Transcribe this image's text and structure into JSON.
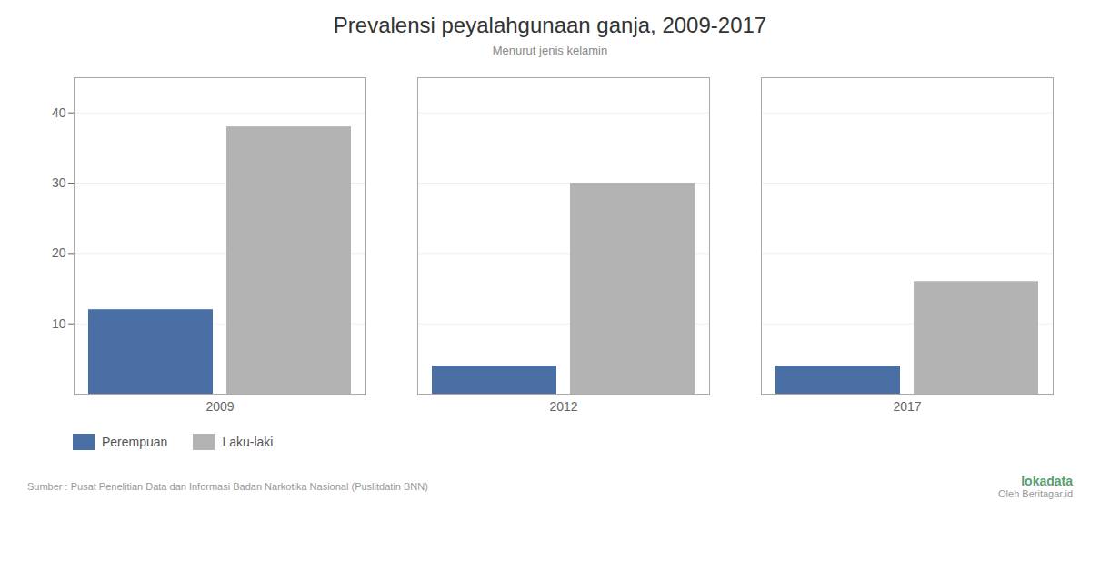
{
  "chart_data": {
    "type": "bar",
    "title": "Prevalensi peyalahgunaan ganja, 2009-2017",
    "subtitle": "Menurut jenis kelamin",
    "categories": [
      "2009",
      "2012",
      "2017"
    ],
    "series": [
      {
        "name": "Perempuan",
        "color": "#4a6fa5",
        "values": [
          12,
          4,
          4
        ]
      },
      {
        "name": "Laku-laki",
        "color": "#b3b3b3",
        "values": [
          38,
          30,
          16
        ]
      }
    ],
    "ylim": [
      0,
      45
    ],
    "yticks": [
      10,
      20,
      30,
      40
    ],
    "grid": true,
    "legend": "bottom",
    "annotations": [
      "Sumber : Pusat Penelitian Data dan Informasi Badan Narkotika Nasional (Puslitdatin BNN)",
      "lokadata",
      "Oleh Beritagar.id"
    ]
  }
}
